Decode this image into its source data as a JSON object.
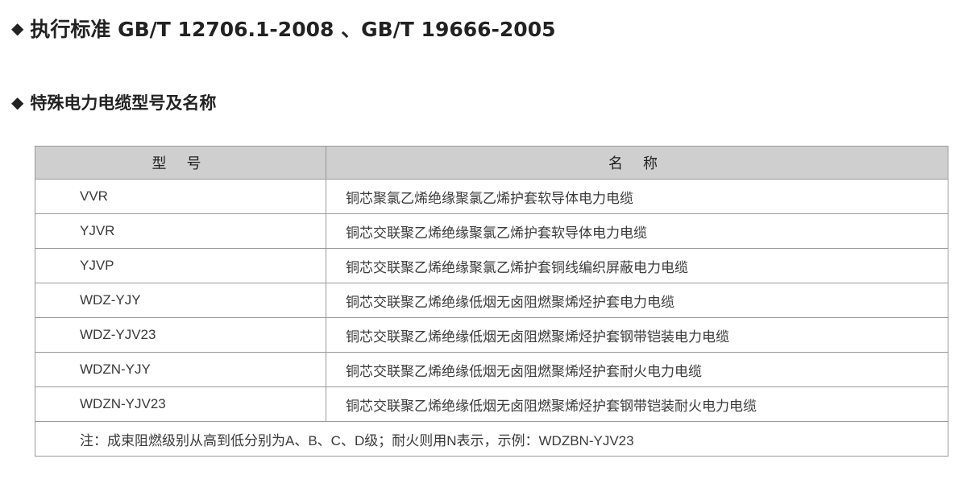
{
  "headings": [
    "执行标准 GB/T 12706.1-2008 、GB/T 19666-2005",
    "特殊电力电缆型号及名称"
  ],
  "table": {
    "headers": [
      "型 号",
      "名 称"
    ],
    "rows": [
      {
        "model": "VVR",
        "name": "铜芯聚氯乙烯绝缘聚氯乙烯护套软导体电力电缆"
      },
      {
        "model": "YJVR",
        "name": "铜芯交联聚乙烯绝缘聚氯乙烯护套软导体电力电缆"
      },
      {
        "model": "YJVP",
        "name": "铜芯交联聚乙烯绝缘聚氯乙烯护套铜线编织屏蔽电力电缆"
      },
      {
        "model": "WDZ-YJY",
        "name": "铜芯交联聚乙烯绝缘低烟无卤阻燃聚烯烃护套电力电缆"
      },
      {
        "model": "WDZ-YJV23",
        "name": "铜芯交联聚乙烯绝缘低烟无卤阻燃聚烯烃护套钢带铠装电力电缆"
      },
      {
        "model": "WDZN-YJY",
        "name": "铜芯交联聚乙烯绝缘低烟无卤阻燃聚烯烃护套耐火电力电缆"
      },
      {
        "model": "WDZN-YJV23",
        "name": "铜芯交联聚乙烯绝缘低烟无卤阻燃聚烯烃护套钢带铠装耐火电力电缆"
      }
    ],
    "note": "注：成束阻燃级别从高到低分别为A、B、C、D级；耐火则用N表示，示例：WDZBN-YJV23"
  },
  "icons": {
    "bullet": "diamond-icon"
  },
  "colors": {
    "header_bg": "#cfcfcf",
    "border": "#999999"
  }
}
